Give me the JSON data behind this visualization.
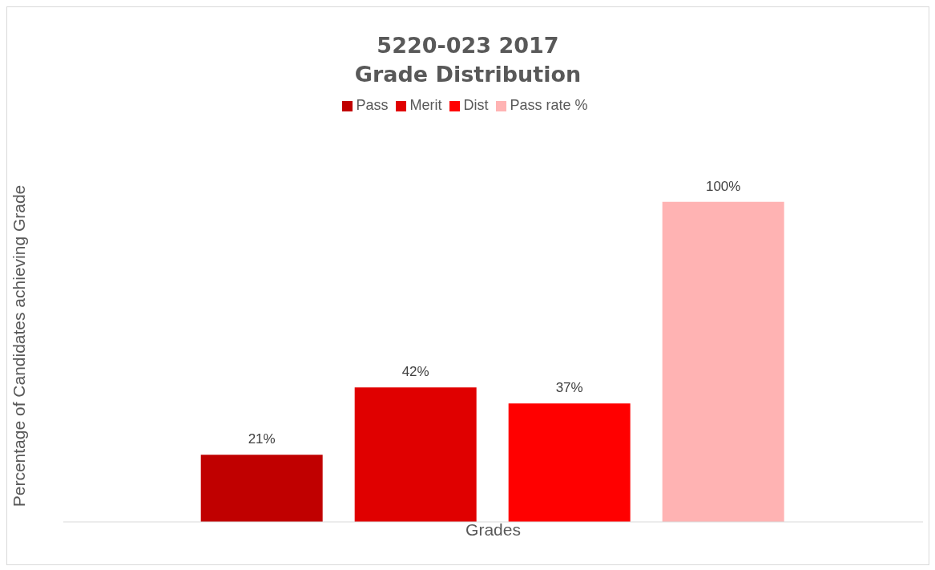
{
  "chart_data": {
    "type": "bar",
    "title": "5220-023 2017\nGrade Distribution",
    "xlabel": "Grades",
    "ylabel": "Percentage of Candidates achieving Grade",
    "categories": [
      null
    ],
    "series": [
      {
        "name": "Pass",
        "color": "#c00000",
        "values": [
          21
        ],
        "value_labels": [
          "21%"
        ]
      },
      {
        "name": "Merit",
        "color": "#e00000",
        "values": [
          42
        ],
        "value_labels": [
          "42%"
        ]
      },
      {
        "name": "Dist",
        "color": "#ff0000",
        "values": [
          37
        ],
        "value_labels": [
          "37%"
        ]
      },
      {
        "name": "Pass rate %",
        "color": "#ffb3b3",
        "values": [
          100
        ],
        "value_labels": [
          "100%"
        ]
      }
    ],
    "legend": "top"
  }
}
